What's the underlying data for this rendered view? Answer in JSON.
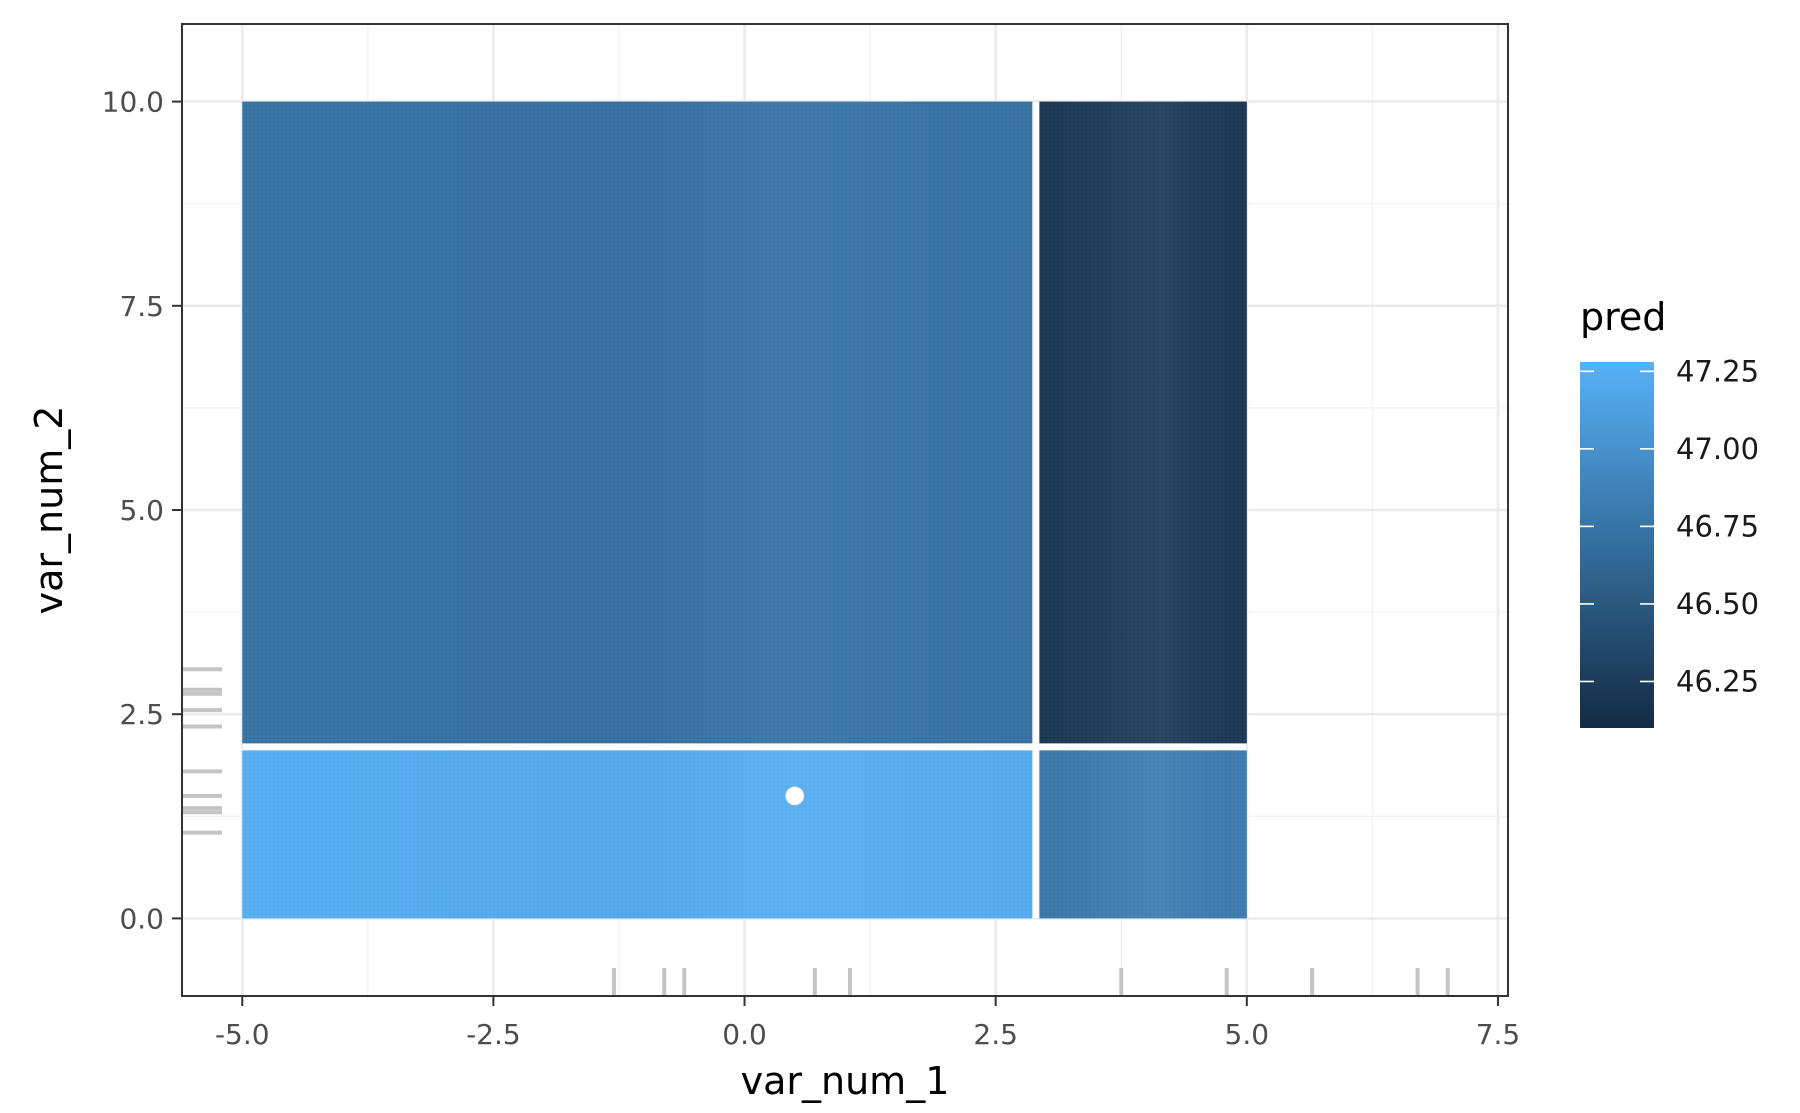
{
  "chart_data": {
    "type": "heatmap",
    "xlabel": "var_num_1",
    "ylabel": "var_num_2",
    "xlim": [
      -5.6,
      7.6
    ],
    "ylim": [
      -0.95,
      10.95
    ],
    "x_ticks": [
      -5.0,
      -2.5,
      0.0,
      2.5,
      5.0,
      7.5
    ],
    "x_tick_labels": [
      "-5.0",
      "-2.5",
      "0.0",
      "2.5",
      "5.0",
      "7.5"
    ],
    "y_ticks": [
      0.0,
      2.5,
      5.0,
      7.5,
      10.0
    ],
    "y_tick_labels": [
      "0.0",
      "2.5",
      "5.0",
      "7.5",
      "10.0"
    ],
    "grid": true,
    "fill_scale": {
      "title": "pred",
      "breaks": [
        46.25,
        46.5,
        46.75,
        47.0,
        47.25
      ],
      "break_labels": [
        "46.25",
        "46.50",
        "46.75",
        "47.00",
        "47.25"
      ],
      "limits": [
        46.1,
        47.28
      ],
      "low_color": "#132b43",
      "high_color": "#56b1f7",
      "legend_position": "right"
    },
    "regions": [
      {
        "x": [
          -5.0,
          2.9
        ],
        "y": [
          0.0,
          2.1
        ],
        "pred": 47.24
      },
      {
        "x": [
          2.9,
          5.0
        ],
        "y": [
          0.0,
          2.1
        ],
        "pred": 46.8
      },
      {
        "x": [
          -5.0,
          2.9
        ],
        "y": [
          2.1,
          10.0
        ],
        "pred": 46.72
      },
      {
        "x": [
          2.9,
          5.0
        ],
        "y": [
          2.1,
          10.0
        ],
        "pred": 46.2
      }
    ],
    "split_lines": {
      "x": 2.9,
      "y": 2.1
    },
    "point": {
      "x": 0.5,
      "y": 1.5
    },
    "x_rug": [
      -1.3,
      -0.8,
      -0.6,
      0.7,
      1.05,
      3.75,
      4.8,
      5.65,
      6.7,
      7.0
    ],
    "y_rug": [
      1.05,
      1.3,
      1.35,
      1.5,
      1.8,
      2.35,
      2.55,
      2.75,
      2.8,
      3.05
    ]
  }
}
